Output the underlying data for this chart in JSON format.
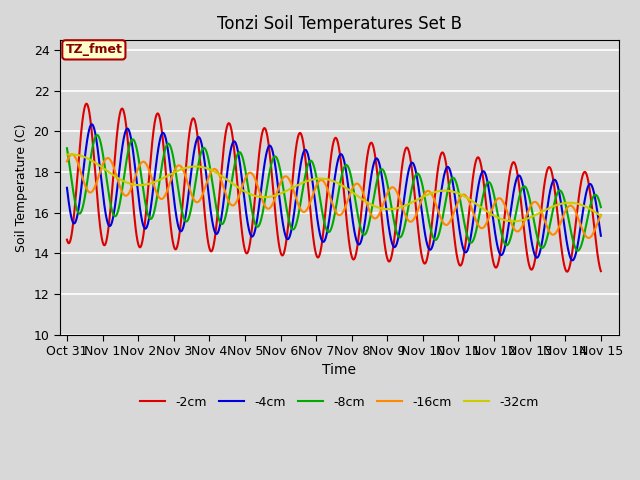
{
  "title": "Tonzi Soil Temperatures Set B",
  "xlabel": "Time",
  "ylabel": "Soil Temperature (C)",
  "ylim": [
    10,
    24.5
  ],
  "xlim": [
    -0.2,
    15.5
  ],
  "background_color": "#d8d8d8",
  "plot_bg_color": "#d8d8d8",
  "grid_color": "white",
  "annotation_text": "TZ_fmet",
  "annotation_bg": "#ffffcc",
  "annotation_border": "#aa0000",
  "legend_labels": [
    "-2cm",
    "-4cm",
    "-8cm",
    "-16cm",
    "-32cm"
  ],
  "line_colors": [
    "#dd0000",
    "#0000dd",
    "#00aa00",
    "#ff8800",
    "#cccc00"
  ],
  "line_widths": [
    1.5,
    1.5,
    1.5,
    1.5,
    1.5
  ],
  "tick_labels": [
    "Oct 31",
    "Nov 1",
    "Nov 2",
    "Nov 3",
    "Nov 4",
    "Nov 5",
    "Nov 6",
    "Nov 7",
    "Nov 8",
    "Nov 9",
    "Nov 10",
    "Nov 11",
    "Nov 12",
    "Nov 13",
    "Nov 14",
    "Nov 15"
  ],
  "tick_positions": [
    0,
    1,
    2,
    3,
    4,
    5,
    6,
    7,
    8,
    9,
    10,
    11,
    12,
    13,
    14,
    15
  ],
  "ytick_positions": [
    10,
    12,
    14,
    16,
    18,
    20,
    22,
    24
  ]
}
